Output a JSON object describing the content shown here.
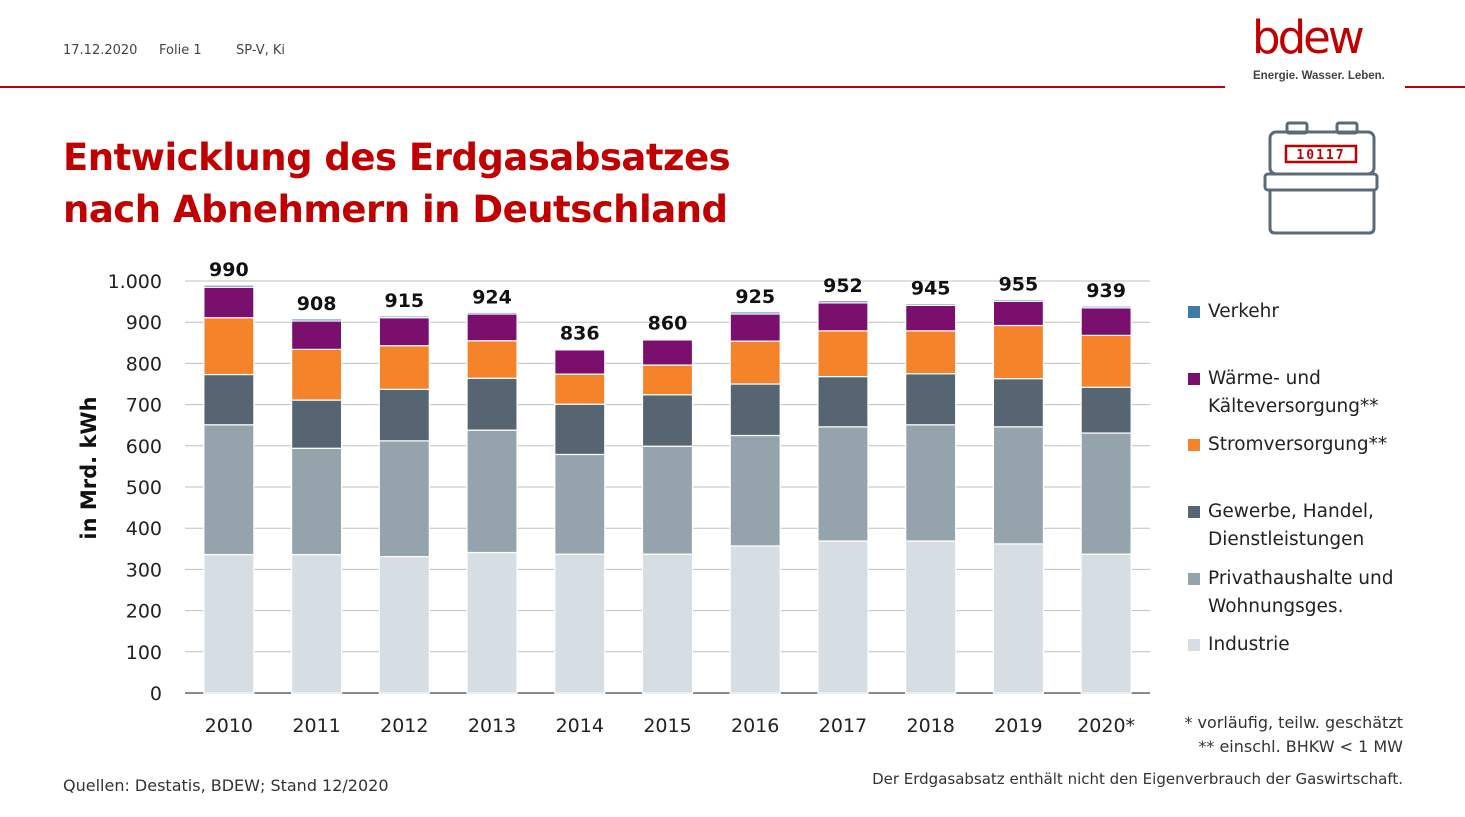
{
  "header": {
    "date": "17.12.2020",
    "slide": "Folie 1",
    "author": "SP-V, Ki"
  },
  "logo": {
    "word": "bdew",
    "tagline": "Energie. Wasser. Leben."
  },
  "meter_icon": {
    "name": "gas-meter-icon",
    "digits": "10117"
  },
  "title_line1": "Entwicklung des Erdgasabsatzes",
  "title_line2": "nach Abnehmern in Deutschland",
  "notes": {
    "note1": "* vorläufig, teilw. geschätzt",
    "note2": "** einschl. BHKW < 1 MW"
  },
  "source": "Quellen: Destatis, BDEW; Stand 12/2020",
  "footnote": "Der Erdgasabsatz enthält nicht den Eigenverbrauch der Gaswirtschaft.",
  "colors": {
    "accent": "#c00000",
    "grid": "#bfbfbf",
    "axis": "#333333"
  },
  "chart_data": {
    "type": "bar",
    "stacked": true,
    "ylabel": "in Mrd. kWh",
    "ylim": [
      0,
      1000
    ],
    "yticks": [
      0,
      100,
      200,
      300,
      400,
      500,
      600,
      700,
      800,
      900,
      1000
    ],
    "ytick_labels": [
      "0",
      "100",
      "200",
      "300",
      "400",
      "500",
      "600",
      "700",
      "800",
      "900",
      "1.000"
    ],
    "grid": true,
    "legend_position": "right",
    "categories": [
      "2010",
      "2011",
      "2012",
      "2013",
      "2014",
      "2015",
      "2016",
      "2017",
      "2018",
      "2019",
      "2020*"
    ],
    "totals": [
      990,
      908,
      915,
      924,
      836,
      860,
      925,
      952,
      945,
      955,
      939
    ],
    "series": [
      {
        "name": "Industrie",
        "color": "#d6dde3",
        "values": [
          336,
          336,
          331,
          341,
          337,
          337,
          357,
          369,
          369,
          362,
          337
        ]
      },
      {
        "name": "Privathaushalte und\nWohnungsges.",
        "color": "#95a3ad",
        "values": [
          315,
          258,
          281,
          297,
          242,
          262,
          268,
          277,
          282,
          284,
          294
        ]
      },
      {
        "name": "Gewerbe, Handel,\nDienstleistungen",
        "color": "#566571",
        "values": [
          122,
          117,
          125,
          126,
          122,
          125,
          125,
          122,
          124,
          117,
          111
        ]
      },
      {
        "name": "Stromversorgung**",
        "color": "#f5832a",
        "values": [
          138,
          123,
          106,
          91,
          73,
          72,
          104,
          111,
          104,
          129,
          126
        ]
      },
      {
        "name": "Wärme- und\nKälteversorgung**",
        "color": "#7b0f6e",
        "values": [
          74,
          69,
          68,
          65,
          59,
          61,
          66,
          68,
          62,
          59,
          67
        ]
      },
      {
        "name": "Verkehr",
        "color": "#3e7ca8",
        "values": [
          5,
          5,
          4,
          4,
          3,
          3,
          5,
          5,
          4,
          4,
          4
        ]
      }
    ]
  }
}
